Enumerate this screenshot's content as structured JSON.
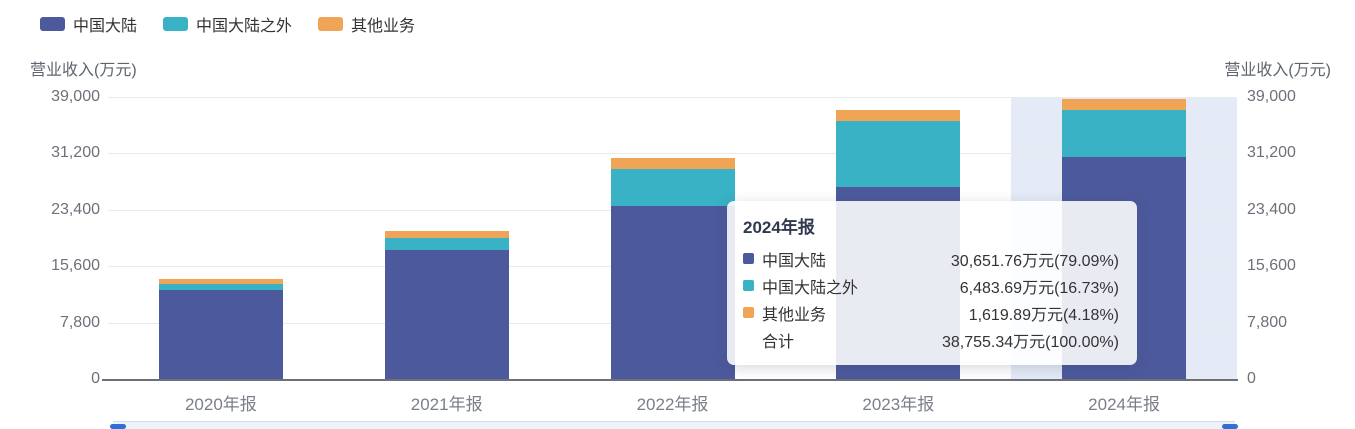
{
  "colors": {
    "mainland": "#4c5a9d",
    "overseas": "#38b2c4",
    "other": "#f0a455",
    "highlight_band": "#e4ebf7",
    "grid_line": "#e9e9f0",
    "axis_line": "#6e7079",
    "tick_text": "#6e7079"
  },
  "legend": {
    "items": [
      {
        "label": "中国大陆",
        "color": "#4c5a9d"
      },
      {
        "label": "中国大陆之外",
        "color": "#38b2c4"
      },
      {
        "label": "其他业务",
        "color": "#f0a455"
      }
    ]
  },
  "y_axis": {
    "title_left": "营业收入(万元)",
    "title_right": "营业收入(万元)",
    "tick_labels": [
      "0",
      "7,800",
      "15,600",
      "23,400",
      "31,200",
      "39,000"
    ]
  },
  "chart_data": {
    "type": "bar",
    "stacked": true,
    "title": "",
    "xlabel": "",
    "ylabel": "营业收入(万元)",
    "categories": [
      "2020年报",
      "2021年报",
      "2022年报",
      "2023年报",
      "2024年报"
    ],
    "series": [
      {
        "name": "中国大陆",
        "color": "#4c5a9d",
        "values": [
          12300,
          17800,
          23900,
          26570,
          30651.76
        ]
      },
      {
        "name": "中国大陆之外",
        "color": "#38b2c4",
        "values": [
          880,
          1760,
          5180,
          9100,
          6483.69
        ]
      },
      {
        "name": "其他业务",
        "color": "#f0a455",
        "values": [
          620,
          930,
          1530,
          1530,
          1619.89
        ]
      }
    ],
    "ylim": [
      0,
      39000
    ],
    "y_ticks": [
      0,
      7800,
      15600,
      23400,
      31200,
      39000
    ],
    "grid": true,
    "legend_position": "top-left",
    "highlighted_category": "2024年报"
  },
  "tooltip": {
    "title": "2024年报",
    "rows": [
      {
        "label": "中国大陆",
        "value": "30,651.76万元(79.09%)",
        "color": "#4c5a9d"
      },
      {
        "label": "中国大陆之外",
        "value": "6,483.69万元(16.73%)",
        "color": "#38b2c4"
      },
      {
        "label": "其他业务",
        "value": "1,619.89万元(4.18%)",
        "color": "#f0a455"
      },
      {
        "label": "合计",
        "value": "38,755.34万元(100.00%)",
        "color": null
      }
    ]
  }
}
